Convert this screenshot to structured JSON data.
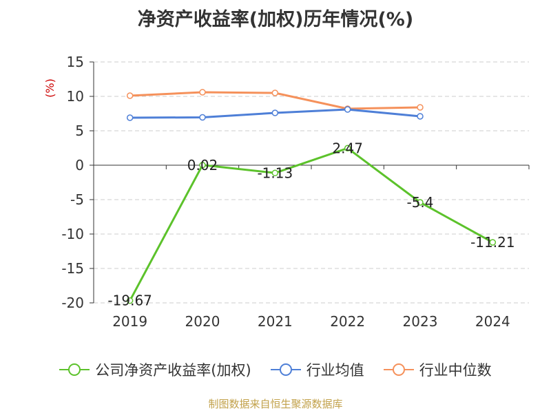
{
  "chart_data": {
    "type": "line",
    "title": "净资产收益率(加权)历年情况(%)",
    "ylabel": "(%)",
    "categories": [
      "2019",
      "2020",
      "2021",
      "2022",
      "2023",
      "2024"
    ],
    "ylim": [
      -20,
      15
    ],
    "yticks": [
      15,
      10,
      5,
      0,
      -5,
      -10,
      -15,
      -20
    ],
    "grid": true,
    "legend_position": "bottom",
    "series": [
      {
        "name": "公司净资产收益率(加权)",
        "color": "#5cc22b",
        "values": [
          -19.67,
          0.02,
          -1.13,
          2.47,
          -5.4,
          -11.21
        ],
        "labels": [
          "-19.67",
          "0.02",
          "-1.13",
          "2.47",
          "-5.4",
          "-11.21"
        ]
      },
      {
        "name": "行业均值",
        "color": "#4e7fd7",
        "values": [
          6.9,
          6.95,
          7.6,
          8.1,
          7.1,
          null
        ]
      },
      {
        "name": "行业中位数",
        "color": "#f5915b",
        "values": [
          10.1,
          10.6,
          10.5,
          8.2,
          8.4,
          null
        ]
      }
    ]
  },
  "source_note": "制图数据来自恒生聚源数据库"
}
